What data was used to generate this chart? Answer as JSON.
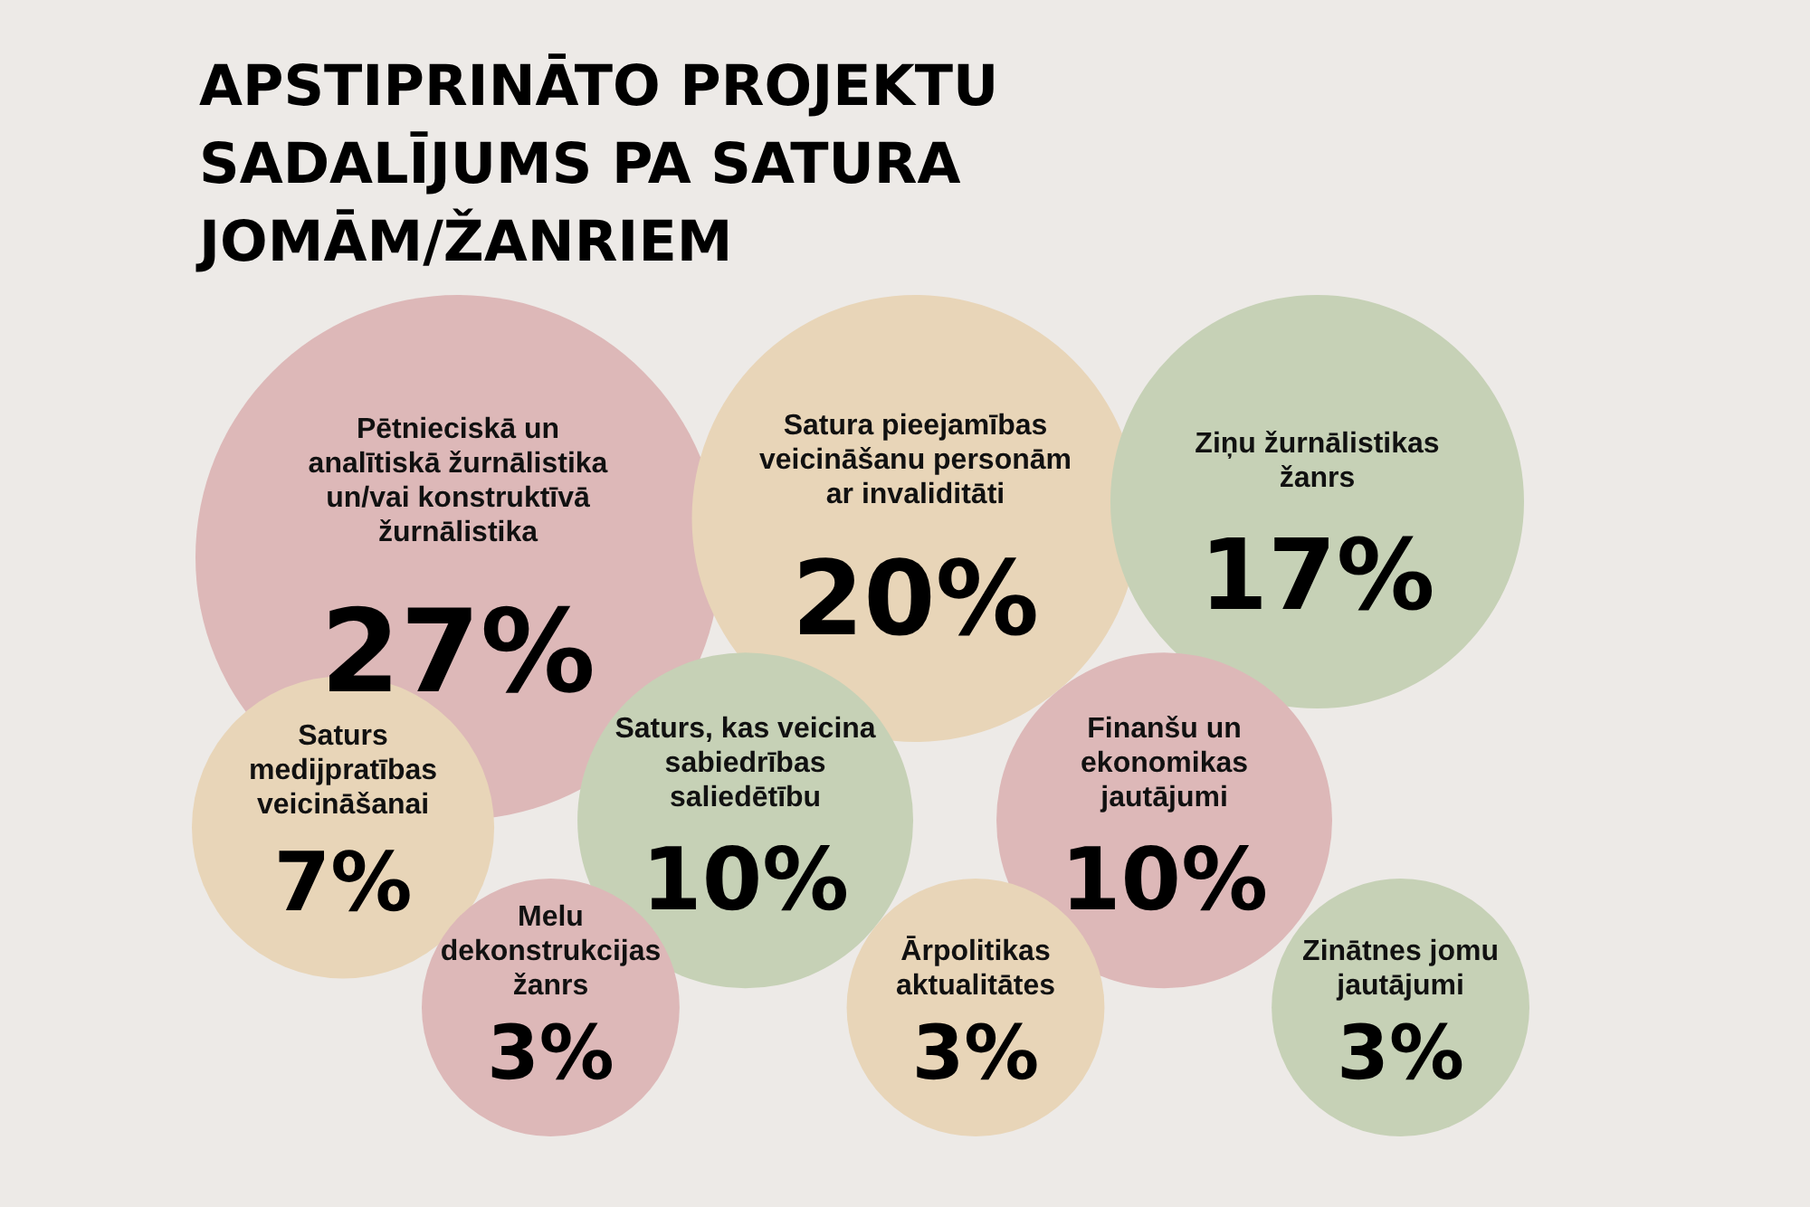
{
  "chart_data": {
    "type": "other",
    "title": "APSTIPRINĀTO PROJEKTU\nSADALĪJUMS PA SATURA\nJOMĀM/ŽANRIEM",
    "categories": [
      "Pētnieciskā un\nanalītiskā žurnālistika\nun/vai konstruktīvā\nžurnālistika",
      "Satura pieejamības\nveicināšanu personām\nar invaliditāti",
      "Ziņu žurnālistikas\nžanrs",
      "Saturs\nmedijpratības\nveicināšanai",
      "Saturs, kas veicina\nsabiedrības\nsaliedētību",
      "Finanšu un\nekonomikas\njautājumi",
      "Melu\ndekonstrukcijas\nžanrs",
      "Ārpolitikas\naktualitātes",
      "Zinātnes jomu\njautājumi"
    ],
    "values": [
      27,
      20,
      17,
      7,
      10,
      10,
      3,
      3,
      3
    ],
    "value_labels": [
      "27%",
      "20%",
      "17%",
      "7%",
      "10%",
      "10%",
      "3%",
      "3%",
      "3%"
    ],
    "colors": [
      "#ddb8b8",
      "#e8d5b8",
      "#c6d1b6",
      "#e8d5b8",
      "#c6d1b6",
      "#ddb8b8",
      "#ddb8b8",
      "#e8d5b8",
      "#c6d1b6"
    ]
  }
}
